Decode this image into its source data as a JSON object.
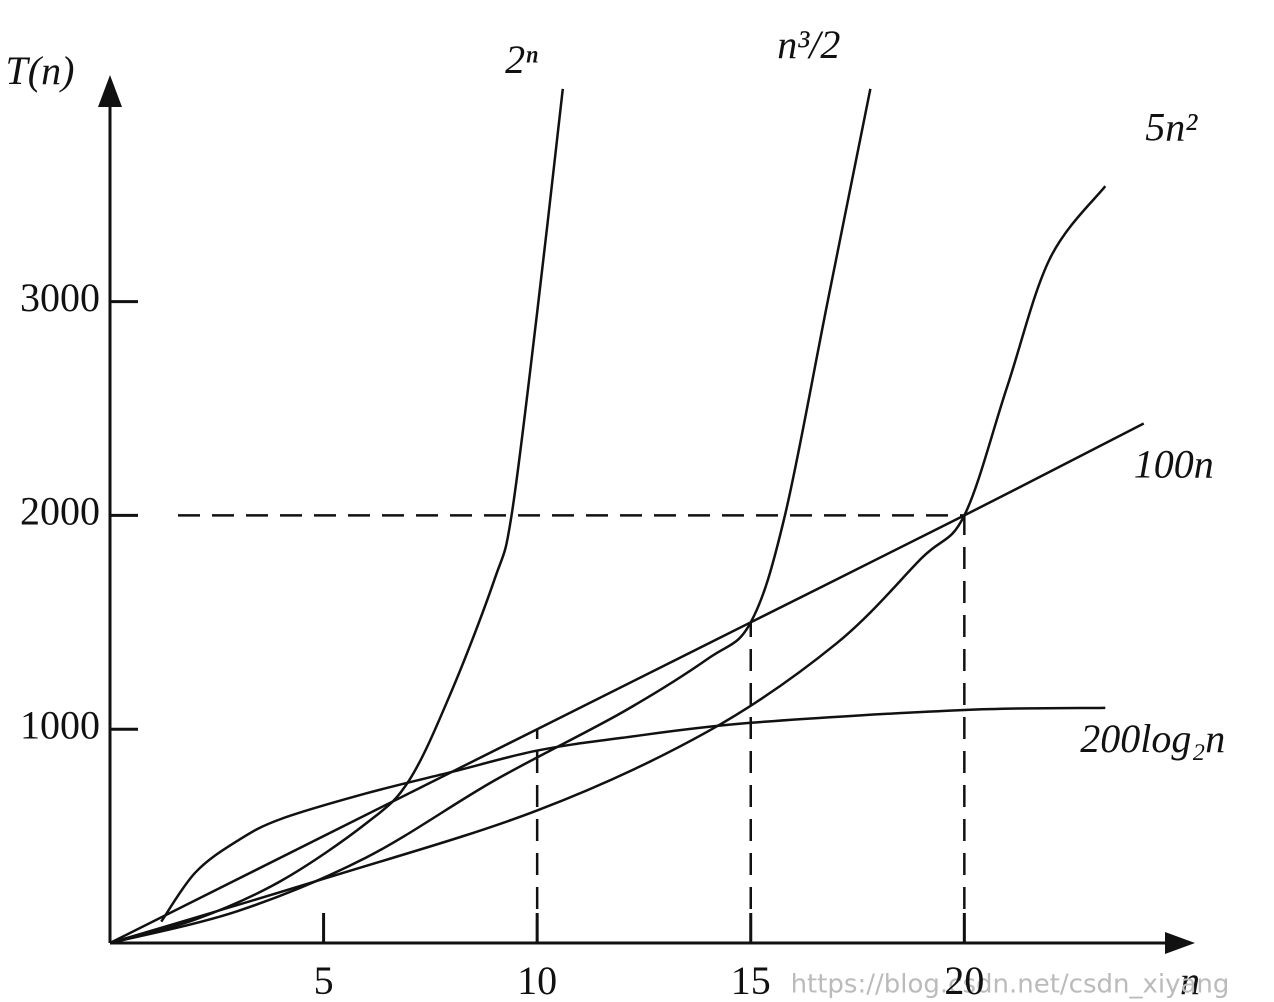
{
  "chart_data": {
    "type": "line",
    "y_label": "T(n)",
    "x_label": "n",
    "xlim": [
      0,
      25.4
    ],
    "ylim": [
      0,
      4060
    ],
    "xticks": [
      5,
      10,
      15,
      20
    ],
    "yticks": [
      1000,
      2000,
      3000
    ],
    "series": [
      {
        "name": "2ⁿ",
        "color": "#111111",
        "x": [
          0,
          2,
          4,
          6,
          7,
          8,
          9,
          9.4,
          10,
          10.6
        ],
        "values": [
          0,
          110,
          290,
          560,
          760,
          1180,
          1700,
          2000,
          2950,
          3995
        ]
      },
      {
        "name": "n³/2",
        "color": "#111111",
        "x": [
          0,
          3,
          6,
          9,
          12,
          14,
          15,
          15.8,
          16.8,
          17.8
        ],
        "values": [
          0,
          150,
          400,
          760,
          1080,
          1330,
          1500,
          2000,
          3000,
          3995
        ]
      },
      {
        "name": "5n²",
        "color": "#111111",
        "x": [
          0,
          5,
          10,
          14,
          17,
          19,
          20,
          21,
          22,
          23.3
        ],
        "values": [
          0,
          300,
          620,
          990,
          1400,
          1800,
          2000,
          2600,
          3200,
          3540
        ]
      },
      {
        "name": "100n",
        "color": "#111111",
        "x": [
          0,
          10,
          15,
          20,
          24.2
        ],
        "values": [
          0,
          1000,
          1500,
          2000,
          2430
        ]
      },
      {
        "name": "200log₂n",
        "color": "#111111",
        "x": [
          1.2,
          2,
          3,
          4,
          6,
          8,
          10,
          12,
          15,
          20,
          23.3
        ],
        "values": [
          100,
          330,
          480,
          580,
          700,
          800,
          900,
          960,
          1030,
          1090,
          1100
        ]
      }
    ],
    "guides": [
      {
        "x": 10,
        "y": 1000
      },
      {
        "x": 15,
        "y": 1500
      },
      {
        "x": 20,
        "y": 2000
      }
    ],
    "watermark": "https://blog.csdn.net/csdn_xiyang"
  }
}
